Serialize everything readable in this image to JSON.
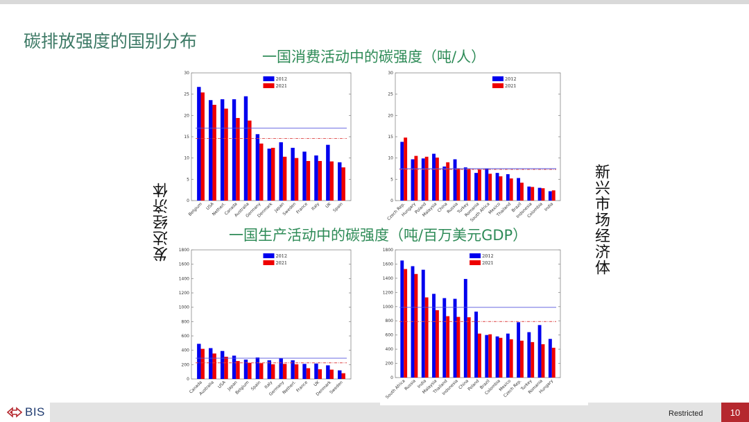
{
  "slide": {
    "title": "碳排放强度的国别分布",
    "subtitle_consumption": "一国消费活动中的碳强度（吨/人）",
    "subtitle_production": "一国生产活动中的碳强度（吨/百万美元GDP）",
    "label_developed": "发达经济体",
    "label_emerging": "新兴市场经济体",
    "restricted": "Restricted",
    "page_number": "10",
    "logo_text": "BIS"
  },
  "colors": {
    "title": "#3e7a66",
    "subtitle": "#2e8b57",
    "series_2012": "#0000ee",
    "series_2021": "#ee0000",
    "page_badge": "#b5282e"
  },
  "chart_data": [
    {
      "type": "bar",
      "categories": [
        "Belgium",
        "USA",
        "Netherl.",
        "Canada",
        "Australia",
        "Germany",
        "Denmark",
        "Japan",
        "Sweden",
        "France",
        "Italy",
        "UK",
        "Spain"
      ],
      "series": [
        {
          "name": "2012",
          "values": [
            26.7,
            23.6,
            23.8,
            23.8,
            24.5,
            15.6,
            12.2,
            13.7,
            12.4,
            11.5,
            10.6,
            13.1,
            9.0
          ]
        },
        {
          "name": "2021",
          "values": [
            25.4,
            22.5,
            21.6,
            19.4,
            18.8,
            13.4,
            12.4,
            10.3,
            10.0,
            9.3,
            9.3,
            9.2,
            7.8
          ]
        }
      ],
      "avg_2012": 17.0,
      "avg_2021": 14.6,
      "ylim": [
        0,
        30
      ],
      "yticks": [
        "0",
        "5",
        "10",
        "15",
        "20",
        "25",
        "30"
      ],
      "legend": "top-left"
    },
    {
      "type": "bar",
      "categories": [
        "Czech Rep.",
        "Hungary",
        "Poland",
        "Malaysia",
        "China",
        "Russia",
        "Turkey",
        "Romania",
        "South Africa",
        "Mexico",
        "Thailand",
        "Brazil",
        "Indonesia",
        "Colombia",
        "India"
      ],
      "series": [
        {
          "name": "2012",
          "values": [
            13.8,
            9.7,
            9.9,
            11.0,
            8.0,
            9.7,
            7.8,
            6.5,
            7.5,
            6.5,
            6.2,
            5.3,
            3.3,
            3.0,
            2.2
          ]
        },
        {
          "name": "2021",
          "values": [
            14.8,
            10.5,
            10.3,
            10.1,
            9.0,
            7.6,
            7.4,
            7.3,
            6.3,
            5.7,
            5.2,
            4.2,
            3.2,
            2.9,
            2.4
          ]
        }
      ],
      "avg_2012": 7.5,
      "avg_2021": 7.3,
      "ylim": [
        0,
        30
      ],
      "yticks": [
        "0",
        "5",
        "10",
        "15",
        "20",
        "25",
        "30"
      ],
      "legend": "top-right"
    },
    {
      "type": "bar",
      "categories": [
        "Canada",
        "Australia",
        "USA",
        "Japan",
        "Belgium",
        "Spain",
        "Italy",
        "Germany",
        "Netherl.",
        "France",
        "UK",
        "Denmark",
        "Sweden"
      ],
      "series": [
        {
          "name": "2012",
          "values": [
            490,
            430,
            390,
            325,
            270,
            300,
            260,
            285,
            260,
            210,
            215,
            190,
            120
          ]
        },
        {
          "name": "2021",
          "values": [
            420,
            355,
            310,
            250,
            225,
            220,
            205,
            210,
            205,
            150,
            135,
            130,
            80
          ]
        }
      ],
      "avg_2012": 290,
      "avg_2021": 225,
      "ylim": [
        0,
        1800
      ],
      "yticks": [
        "0",
        "200",
        "400",
        "600",
        "800",
        "1000",
        "1200",
        "1400",
        "1600",
        "1800"
      ],
      "legend": "top-left"
    },
    {
      "type": "bar",
      "categories": [
        "South Africa",
        "Russia",
        "India",
        "Malaysia",
        "Thailand",
        "Indonesia",
        "China",
        "Poland",
        "Brazil",
        "Colombia",
        "Mexico",
        "Czech Rep.",
        "Turkey",
        "Romania",
        "Hungary"
      ],
      "series": [
        {
          "name": "2012",
          "values": [
            1650,
            1570,
            1520,
            1180,
            1120,
            1110,
            1390,
            930,
            600,
            580,
            620,
            780,
            640,
            740,
            545
          ]
        },
        {
          "name": "2021",
          "values": [
            1530,
            1460,
            1130,
            950,
            865,
            855,
            850,
            620,
            610,
            560,
            540,
            520,
            500,
            470,
            420
          ]
        }
      ],
      "avg_2012": 990,
      "avg_2021": 790,
      "ylim": [
        0,
        1800
      ],
      "yticks": [
        "0",
        "200",
        "400",
        "600",
        "800",
        "1000",
        "1200",
        "1400",
        "1600",
        "1800"
      ],
      "legend": "top-left"
    }
  ]
}
